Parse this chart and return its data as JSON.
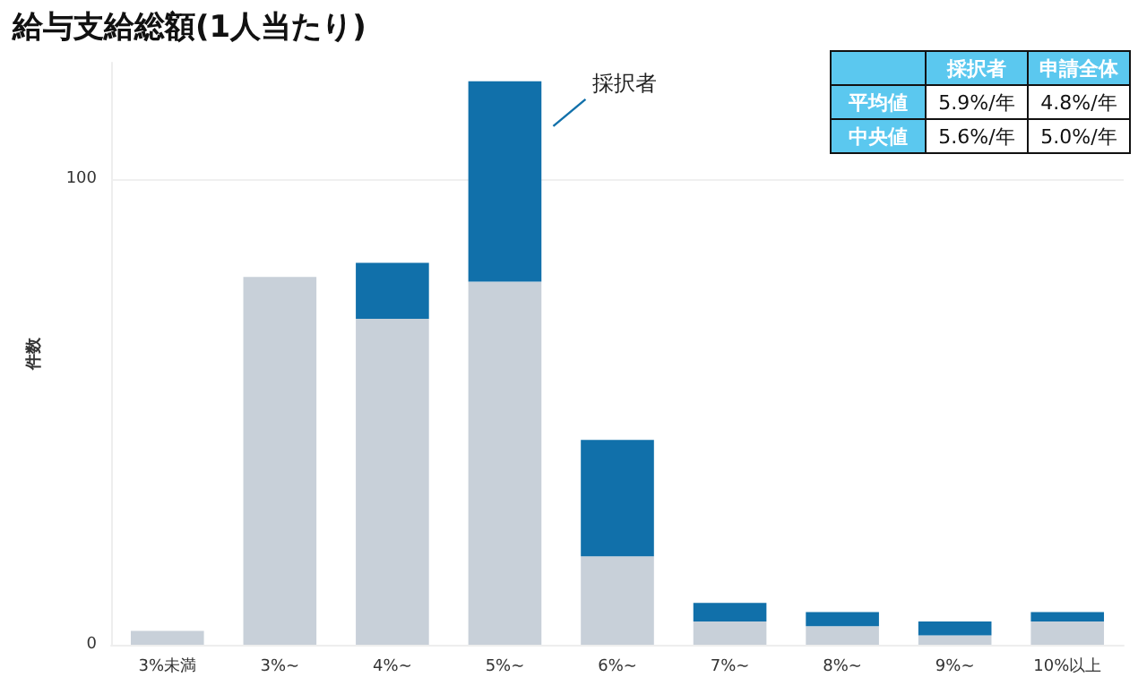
{
  "chart_data": {
    "type": "bar",
    "title": "給与支給総額(1人当たり)",
    "ylabel": "件数",
    "categories": [
      "3%未満",
      "3%~",
      "4%~",
      "5%~",
      "6%~",
      "7%~",
      "8%~",
      "9%~",
      "10%以上"
    ],
    "stacked": true,
    "series": [
      {
        "color": "#c8d0d9",
        "values": [
          3,
          79,
          70,
          78,
          19,
          5,
          4,
          2,
          5
        ]
      },
      {
        "name": "採択者",
        "color": "#1170aa",
        "values": [
          0,
          0,
          12,
          43,
          25,
          4,
          3,
          3,
          2
        ]
      }
    ],
    "ylim": [
      0,
      125
    ],
    "yticks": [
      0,
      100
    ],
    "grid": "y",
    "legend": false,
    "annotations": [
      "採択者",
      "申請全体",
      "平均値",
      "5.9%/年",
      "4.8%/年",
      "中央値",
      "5.6%/年",
      "5.0%/年"
    ]
  }
}
